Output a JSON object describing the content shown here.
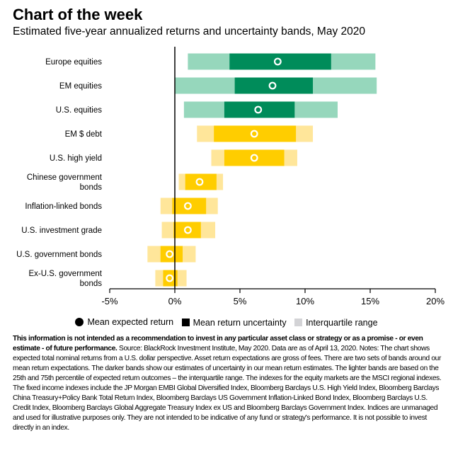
{
  "header": {
    "title": "Chart of the week",
    "subtitle": "Estimated five-year annualized returns and uncertainty bands, May 2020"
  },
  "colors": {
    "equity_mean_uncertainty": "#008c5a",
    "equity_interquartile": "#96d7bc",
    "fixed_income_mean_uncertainty": "#ffcd00",
    "fixed_income_interquartile": "#ffe69a",
    "marker": "#ffffff",
    "axis": "#000000"
  },
  "chart_data": {
    "type": "bar",
    "orientation": "horizontal",
    "categories": [
      "Europe equities",
      "EM equities",
      "U.S. equities",
      "EM $ debt",
      "U.S. high yield",
      "Chinese government bonds",
      "Inflation-linked bonds",
      "U.S. investment grade",
      "U.S. government bonds",
      "Ex-U.S. government bonds"
    ],
    "asset_class": [
      "equity",
      "equity",
      "equity",
      "fixed_income",
      "fixed_income",
      "fixed_income",
      "fixed_income",
      "fixed_income",
      "fixed_income",
      "fixed_income"
    ],
    "series": [
      {
        "name": "Mean expected return",
        "values": [
          7.9,
          7.5,
          6.4,
          6.1,
          6.1,
          1.9,
          1.0,
          1.0,
          -0.4,
          -0.4
        ]
      },
      {
        "name": "Mean return uncertainty",
        "low": [
          4.2,
          4.6,
          3.8,
          3.0,
          3.8,
          0.8,
          -0.2,
          -0.1,
          -1.1,
          -0.9
        ],
        "high": [
          12.0,
          10.6,
          9.2,
          9.3,
          8.4,
          3.2,
          2.4,
          2.0,
          0.6,
          0.2
        ]
      },
      {
        "name": "Interquartile range",
        "low": [
          1.0,
          0.0,
          0.7,
          1.7,
          2.8,
          0.3,
          -1.1,
          -1.0,
          -2.1,
          -1.5
        ],
        "high": [
          15.4,
          15.5,
          12.5,
          10.6,
          9.4,
          3.7,
          3.3,
          3.1,
          1.6,
          0.9
        ]
      }
    ],
    "x_ticks": [
      "-5%",
      "0%",
      "5%",
      "10%",
      "15%",
      "20%"
    ],
    "x_tick_values": [
      -5,
      0,
      5,
      10,
      15,
      20
    ],
    "xlim": [
      -5,
      20
    ],
    "legend_position": "bottom",
    "grid": false
  },
  "legend": [
    {
      "label": "Mean expected return",
      "color": "#000000",
      "shape": "dot"
    },
    {
      "label": "Mean return uncertainty",
      "color": "#000000",
      "shape": "square"
    },
    {
      "label": "Interquartile range",
      "color": "#d3d3d6",
      "shape": "square"
    }
  ],
  "footnote": {
    "bold": "This information is not intended as a recommendation to invest in any particular asset class or strategy or as a promise - or even estimate - of future performance.",
    "text": " Source: BlackRock Investment Institute, May 2020. Data are as of April 13, 2020. Notes: The chart shows expected total nominal returns from a U.S. dollar perspective. Asset return expectations are gross of fees. There are two sets of bands around our mean return expectations. The darker bands show our estimates of uncertainty in our mean return estimates. The lighter bands are based on the 25th and 75th percentile of expected return outcomes – the interquartile range. The indexes for the equity markets are the MSCI regional indexes. The fixed income indexes include the JP Morgan EMBI Global Diversified Index, Bloomberg Barclays U.S. High Yield Index, Bloomberg Barclays China Treasury+Policy Bank Total Return Index, Bloomberg Barclays US Government Inflation-Linked Bond Index, Bloomberg Barclays U.S. Credit Index, Bloomberg Barclays Global Aggregate Treasury Index ex US and Bloomberg Barclays Government Index. Indices are unmanaged and used for illustrative purposes only. They are not intended to be indicative of any fund or strategy's performance. It is not possible to invest directly in an index."
  }
}
